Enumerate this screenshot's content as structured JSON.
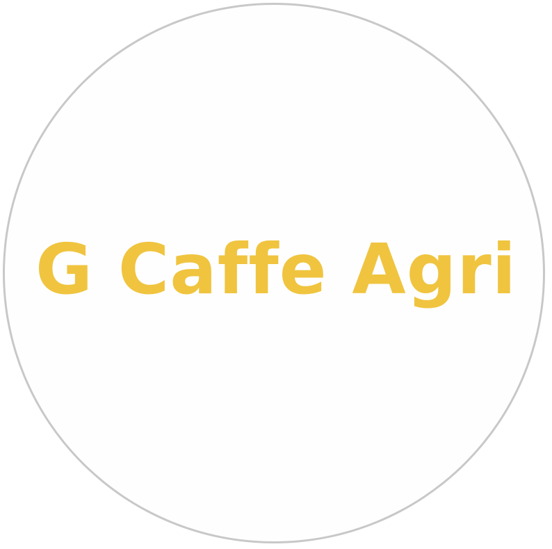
{
  "logo": {
    "text": "G Caffe Agri",
    "text_color": "#f0c43f",
    "ring_color": "#c8c8c8",
    "background_color": "#ffffff"
  }
}
